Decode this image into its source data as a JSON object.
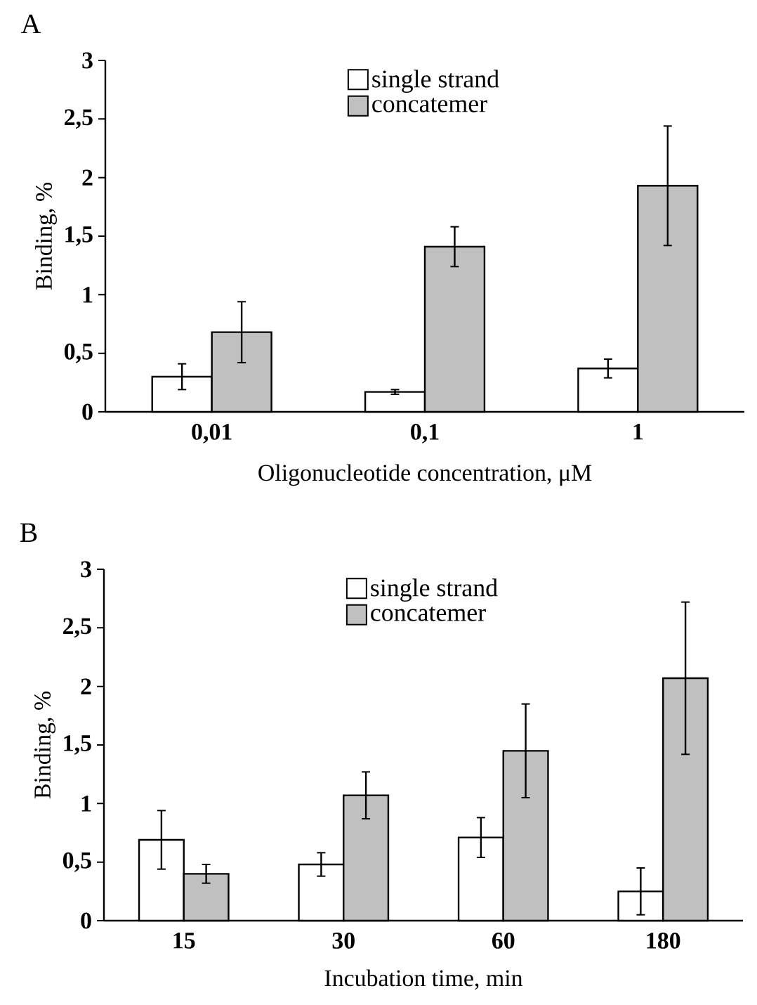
{
  "chart_data": [
    {
      "type": "bar",
      "title": "A",
      "xlabel": "Oligonucleotide concentration, μM",
      "ylabel": "Binding, %",
      "categories": [
        "0,01",
        "0,1",
        "1"
      ],
      "series": [
        {
          "name": "single strand",
          "color": "#ffffff",
          "values": [
            0.3,
            0.17,
            0.37
          ],
          "errors": [
            0.11,
            0.02,
            0.08
          ]
        },
        {
          "name": "concatemer",
          "color": "#c0c0c0",
          "values": [
            0.68,
            1.41,
            1.93
          ],
          "errors": [
            0.26,
            0.17,
            0.51
          ]
        }
      ],
      "ylim": [
        0,
        3
      ],
      "yticks": [
        0,
        {
          "value": 0.5,
          "label": "0,5"
        },
        1,
        {
          "value": 1.5,
          "label": "1,5"
        },
        2,
        {
          "value": 2.5,
          "label": "2,5"
        },
        3
      ],
      "legend": "top"
    },
    {
      "type": "bar",
      "title": "B",
      "xlabel": "Incubation time, min",
      "ylabel": "Binding, %",
      "categories": [
        "15",
        "30",
        "60",
        "180"
      ],
      "series": [
        {
          "name": "single strand",
          "color": "#ffffff",
          "values": [
            0.69,
            0.48,
            0.71,
            0.25
          ],
          "errors": [
            0.25,
            0.1,
            0.17,
            0.2
          ]
        },
        {
          "name": "concatemer",
          "color": "#c0c0c0",
          "values": [
            0.4,
            1.07,
            1.45,
            2.07
          ],
          "errors": [
            0.08,
            0.2,
            0.4,
            0.65
          ]
        }
      ],
      "ylim": [
        0,
        3
      ],
      "yticks": [
        0,
        {
          "value": 0.5,
          "label": "0,5"
        },
        1,
        {
          "value": 1.5,
          "label": "1,5"
        },
        2,
        {
          "value": 2.5,
          "label": "2,5"
        },
        3
      ],
      "legend": "top"
    }
  ]
}
